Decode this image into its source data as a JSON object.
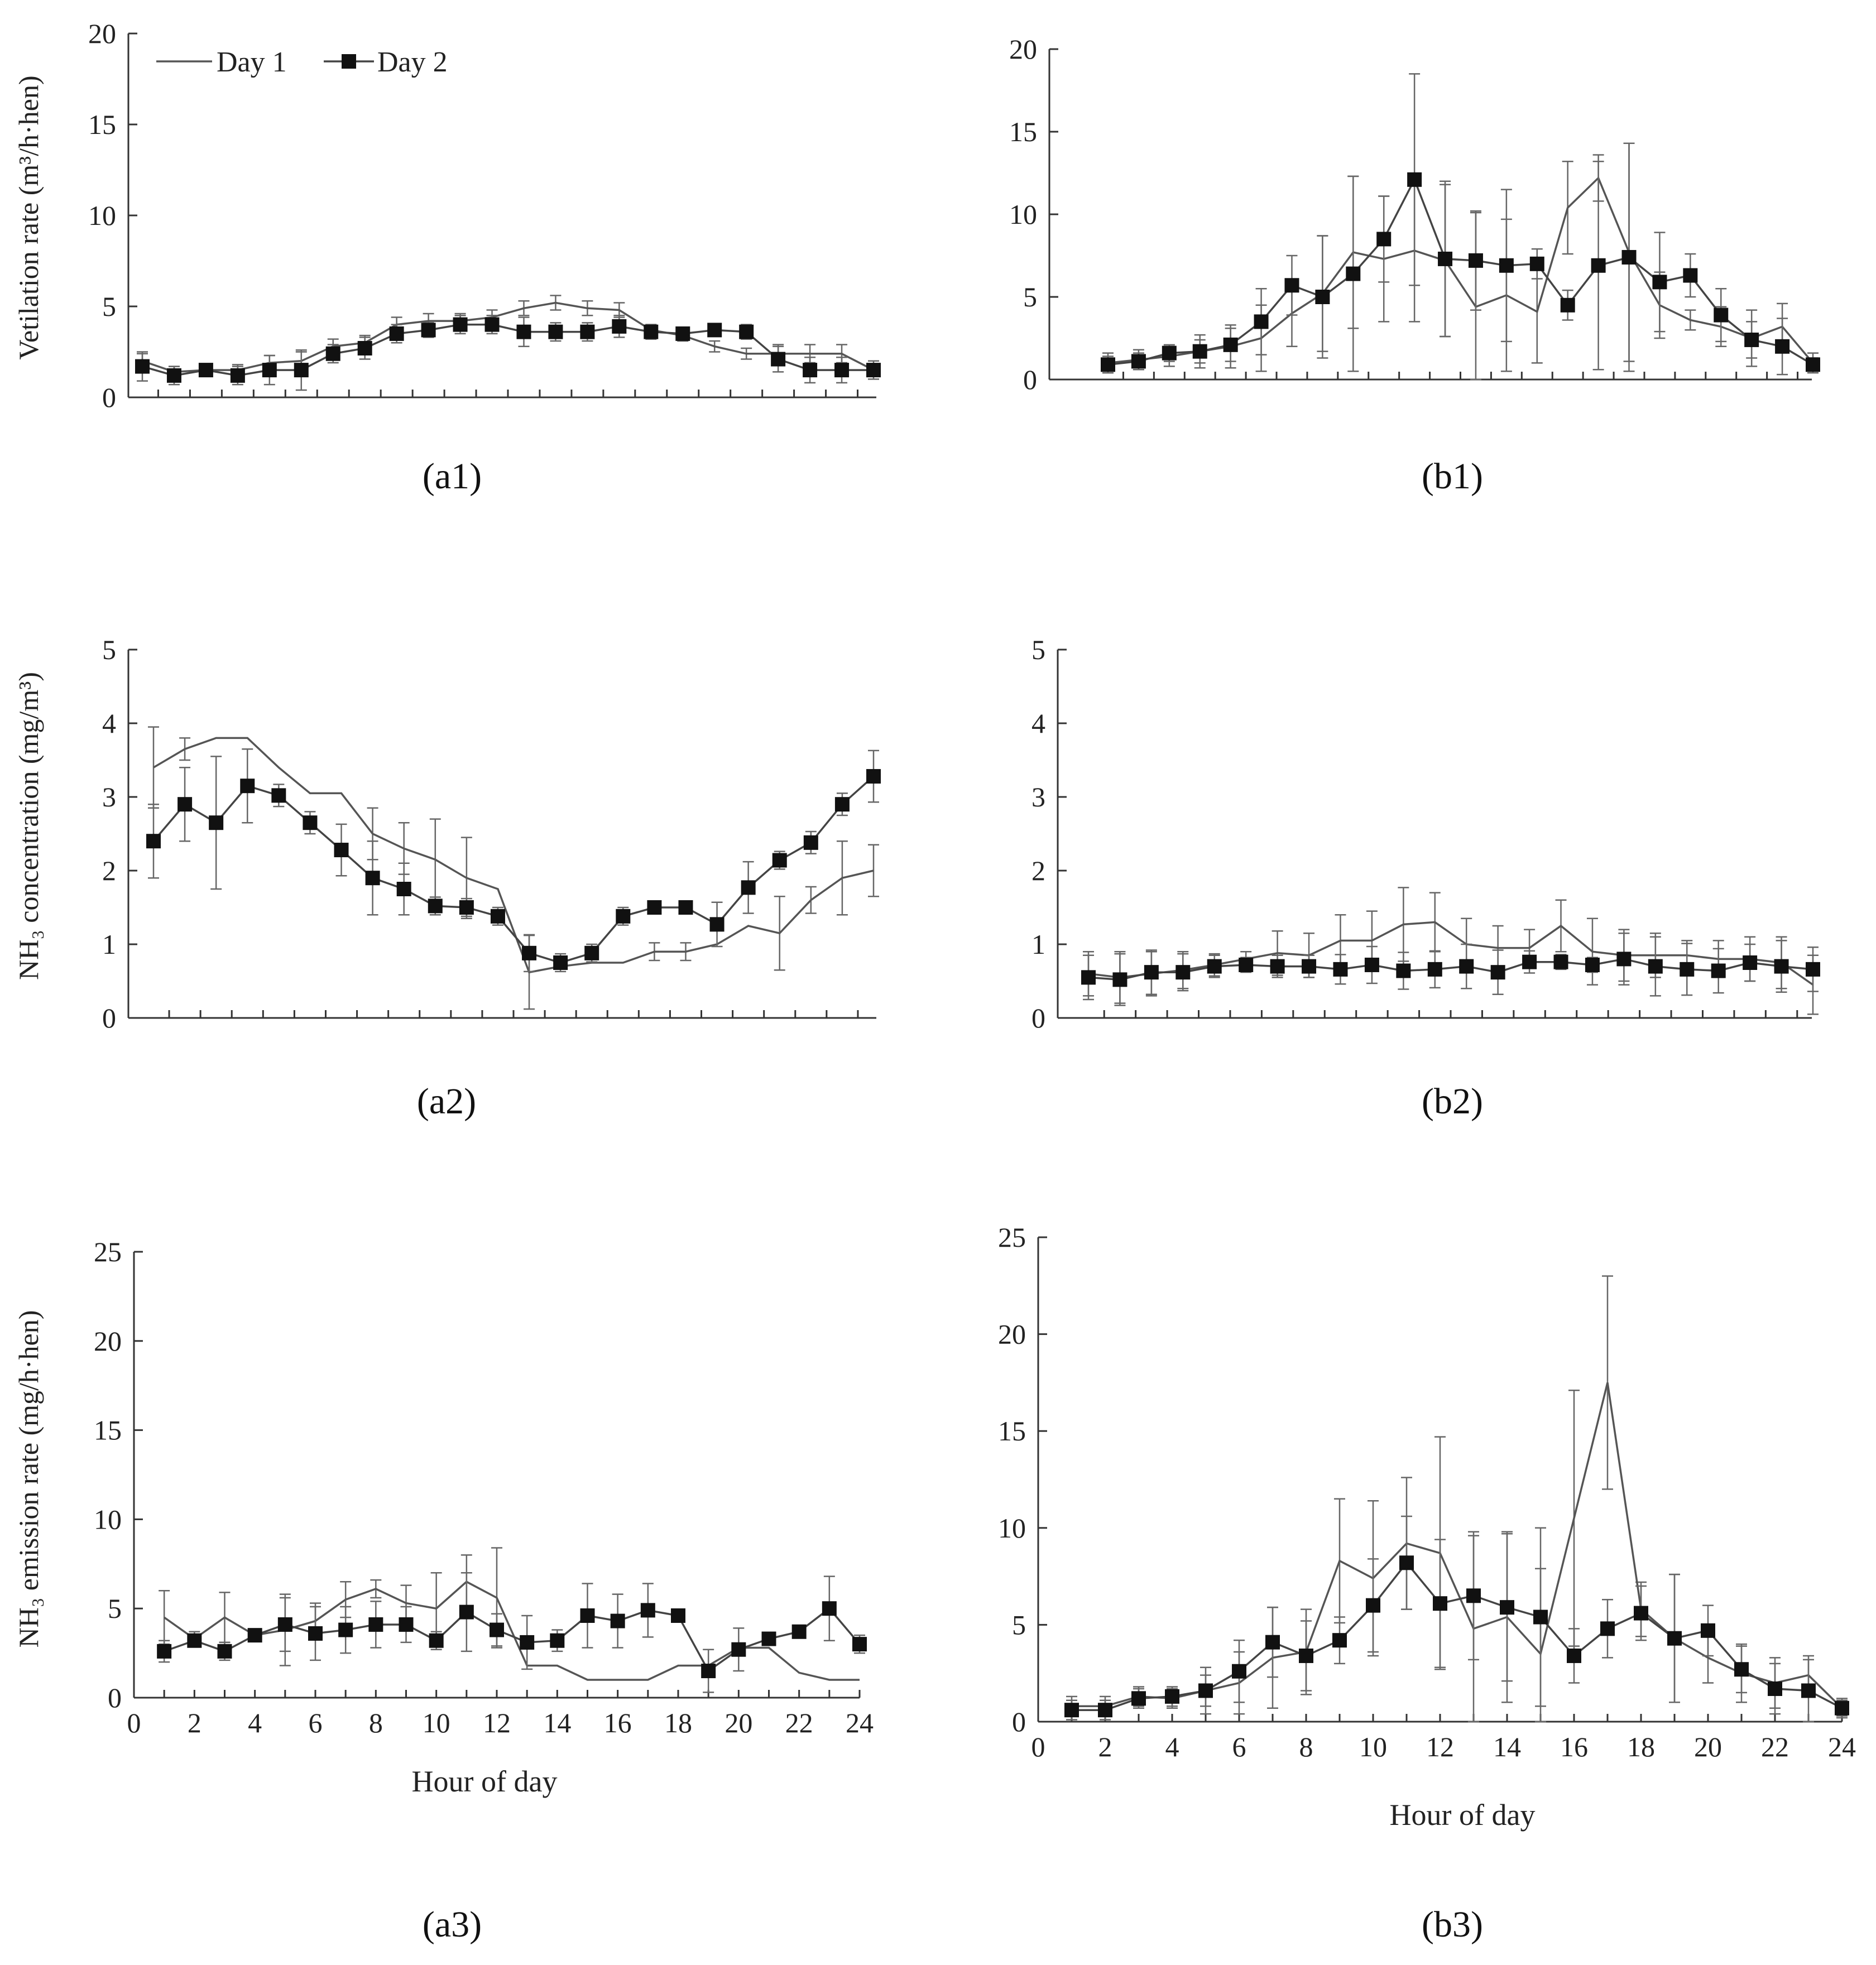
{
  "legend": {
    "day1": "Day 1",
    "day2": "Day 2"
  },
  "axis_titles": {
    "ventilation": "Vetilation rate (m³/h·hen)",
    "concentration": "NH₃ concentration (mg/m³)",
    "emission": "NH₃ emission rate (mg/h·hen)",
    "hour": "Hour of day"
  },
  "captions": {
    "a1": "(a1)",
    "b1": "(b1)",
    "a2": "(a2)",
    "b2": "(b2)",
    "a3": "(a3)",
    "b3": "(b3)"
  },
  "chart_data": [
    {
      "id": "a1",
      "type": "line",
      "title": "(a1)",
      "ylabel": "Vetilation rate (m³/h·hen)",
      "xlabel": "",
      "xlim": [
        1,
        24
      ],
      "ylim": [
        0,
        20
      ],
      "yticks": [
        0,
        5,
        10,
        15,
        20
      ],
      "xticks": [],
      "legend": [
        "Day 1",
        "Day 2"
      ],
      "series": [
        {
          "name": "Day 1",
          "x": [
            1,
            2,
            3,
            4,
            5,
            6,
            7,
            8,
            9,
            10,
            11,
            12,
            13,
            14,
            15,
            16,
            17,
            18,
            19,
            20,
            21,
            22,
            23,
            24
          ],
          "values": [
            2.0,
            1.4,
            1.5,
            1.5,
            1.9,
            2.0,
            2.8,
            3.0,
            4.0,
            4.2,
            4.2,
            4.4,
            4.9,
            5.2,
            4.9,
            4.8,
            3.7,
            3.4,
            2.8,
            2.4,
            2.4,
            2.4,
            2.4,
            1.5
          ],
          "err": [
            0.4,
            0.3,
            0.3,
            0.3,
            0.4,
            0.5,
            0.4,
            0.4,
            0.4,
            0.4,
            0.4,
            0.4,
            0.4,
            0.4,
            0.4,
            0.4,
            0.3,
            0.3,
            0.3,
            0.3,
            0.5,
            0.5,
            0.5,
            0.3
          ]
        },
        {
          "name": "Day 2",
          "x": [
            1,
            2,
            3,
            4,
            5,
            6,
            7,
            8,
            9,
            10,
            11,
            12,
            13,
            14,
            15,
            16,
            17,
            18,
            19,
            20,
            21,
            22,
            23,
            24
          ],
          "values": [
            1.7,
            1.2,
            1.5,
            1.2,
            1.5,
            1.5,
            2.4,
            2.7,
            3.5,
            3.7,
            4.0,
            4.0,
            3.6,
            3.6,
            3.6,
            3.9,
            3.6,
            3.5,
            3.7,
            3.6,
            2.1,
            1.5,
            1.5,
            1.5
          ],
          "err": [
            0.8,
            0.5,
            0.3,
            0.5,
            0.8,
            1.1,
            0.5,
            0.6,
            0.5,
            0.4,
            0.5,
            0.5,
            0.8,
            0.5,
            0.5,
            0.6,
            0.4,
            0.3,
            0.3,
            0.4,
            0.7,
            0.7,
            0.7,
            0.5
          ]
        }
      ]
    },
    {
      "id": "b1",
      "type": "line",
      "title": "(b1)",
      "ylabel": "",
      "xlabel": "",
      "xlim": [
        1,
        24
      ],
      "ylim": [
        0,
        20
      ],
      "yticks": [
        0,
        5,
        10,
        15,
        20
      ],
      "xticks": [],
      "series": [
        {
          "name": "Day 1",
          "x": [
            1,
            2,
            3,
            4,
            5,
            6,
            7,
            8,
            9,
            10,
            11,
            12,
            13,
            14,
            15,
            16,
            17,
            18,
            19,
            20,
            21,
            22,
            23,
            24
          ],
          "values": [
            1.0,
            1.2,
            1.4,
            1.7,
            2.0,
            2.5,
            4.0,
            5.2,
            7.7,
            7.3,
            7.8,
            7.2,
            4.4,
            5.1,
            4.1,
            10.4,
            12.2,
            7.7,
            4.5,
            3.6,
            3.2,
            2.5,
            3.2,
            1.0
          ],
          "err": [
            0.6,
            0.6,
            0.6,
            1.0,
            1.3,
            2.0,
            2.0,
            3.5,
            4.6,
            3.8,
            4.3,
            4.6,
            5.7,
            4.6,
            3.1,
            2.8,
            1.4,
            6.6,
            2.0,
            0.6,
            1.2,
            1.7,
            1.4,
            0.6
          ]
        },
        {
          "name": "Day 2",
          "x": [
            1,
            2,
            3,
            4,
            5,
            6,
            7,
            8,
            9,
            10,
            11,
            12,
            13,
            14,
            15,
            16,
            17,
            18,
            19,
            20,
            21,
            22,
            23,
            24
          ],
          "values": [
            0.9,
            1.1,
            1.6,
            1.7,
            2.1,
            3.5,
            5.7,
            5.0,
            6.4,
            8.5,
            12.1,
            7.3,
            7.2,
            6.9,
            7.0,
            4.5,
            6.9,
            7.4,
            5.9,
            6.3,
            3.9,
            2.4,
            2.0,
            0.9
          ],
          "err": [
            0.5,
            0.5,
            0.5,
            0.7,
            1.0,
            2.0,
            1.8,
            3.7,
            5.9,
            2.6,
            6.4,
            4.7,
            3.0,
            4.6,
            0.9,
            0.9,
            6.3,
            6.9,
            3.0,
            1.3,
            1.6,
            1.1,
            1.7,
            0.4
          ]
        }
      ]
    },
    {
      "id": "a2",
      "type": "line",
      "title": "(a2)",
      "ylabel": "NH₃ concentration (mg/m³)",
      "xlabel": "",
      "xlim": [
        1,
        24
      ],
      "ylim": [
        0,
        5
      ],
      "yticks": [
        0,
        1,
        2,
        3,
        4,
        5
      ],
      "xticks": [],
      "series": [
        {
          "name": "Day 1",
          "x": [
            1,
            2,
            3,
            4,
            5,
            6,
            7,
            8,
            9,
            10,
            11,
            12,
            13,
            14,
            15,
            16,
            17,
            18,
            19,
            20,
            21,
            22,
            23,
            24
          ],
          "values": [
            3.4,
            3.65,
            3.8,
            3.8,
            3.4,
            3.05,
            3.05,
            2.5,
            2.3,
            2.15,
            1.9,
            1.75,
            0.62,
            0.7,
            0.75,
            0.75,
            0.9,
            0.9,
            1.0,
            1.25,
            1.15,
            1.6,
            1.9,
            2.0
          ],
          "err": [
            0.55,
            0.15,
            0.0,
            0.0,
            0.0,
            0.0,
            0.0,
            0.35,
            0.35,
            0.55,
            0.55,
            0.0,
            0.5,
            0.0,
            0.0,
            0.0,
            0.12,
            0.12,
            0.0,
            0.0,
            0.5,
            0.18,
            0.5,
            0.35
          ]
        },
        {
          "name": "Day 2",
          "x": [
            1,
            2,
            3,
            4,
            5,
            6,
            7,
            8,
            9,
            10,
            11,
            12,
            13,
            14,
            15,
            16,
            17,
            18,
            19,
            20,
            21,
            22,
            23,
            24
          ],
          "values": [
            2.4,
            2.9,
            2.65,
            3.15,
            3.02,
            2.65,
            2.28,
            1.9,
            1.75,
            1.52,
            1.5,
            1.38,
            0.88,
            0.75,
            0.88,
            1.38,
            1.5,
            1.5,
            1.27,
            1.77,
            2.14,
            2.38,
            2.9,
            3.28
          ],
          "err": [
            0.5,
            0.5,
            0.9,
            0.5,
            0.15,
            0.15,
            0.35,
            0.5,
            0.35,
            0.12,
            0.12,
            0.12,
            0.25,
            0.12,
            0.12,
            0.12,
            0.0,
            0.0,
            0.3,
            0.35,
            0.12,
            0.15,
            0.15,
            0.35
          ]
        }
      ]
    },
    {
      "id": "b2",
      "type": "line",
      "title": "(b2)",
      "ylabel": "",
      "xlabel": "",
      "xlim": [
        1,
        24
      ],
      "ylim": [
        0,
        5
      ],
      "yticks": [
        0,
        1,
        2,
        3,
        4,
        5
      ],
      "xticks": [],
      "series": [
        {
          "name": "Day 1",
          "x": [
            1,
            2,
            3,
            4,
            5,
            6,
            7,
            8,
            9,
            10,
            11,
            12,
            13,
            14,
            15,
            16,
            17,
            18,
            19,
            20,
            21,
            22,
            23,
            24
          ],
          "values": [
            0.6,
            0.55,
            0.6,
            0.65,
            0.72,
            0.8,
            0.88,
            0.85,
            1.05,
            1.05,
            1.27,
            1.3,
            1.0,
            0.95,
            0.95,
            1.25,
            0.9,
            0.85,
            0.85,
            0.85,
            0.8,
            0.8,
            0.75,
            0.45
          ],
          "err": [
            0.3,
            0.35,
            0.3,
            0.25,
            0.15,
            0.1,
            0.3,
            0.3,
            0.35,
            0.4,
            0.5,
            0.4,
            0.35,
            0.3,
            0.25,
            0.35,
            0.45,
            0.35,
            0.3,
            0.2,
            0.25,
            0.3,
            0.35,
            0.4
          ]
        },
        {
          "name": "Day 2",
          "x": [
            1,
            2,
            3,
            4,
            5,
            6,
            7,
            8,
            9,
            10,
            11,
            12,
            13,
            14,
            15,
            16,
            17,
            18,
            19,
            20,
            21,
            22,
            23,
            24
          ],
          "values": [
            0.55,
            0.52,
            0.62,
            0.62,
            0.7,
            0.72,
            0.7,
            0.7,
            0.66,
            0.72,
            0.64,
            0.66,
            0.7,
            0.62,
            0.76,
            0.76,
            0.72,
            0.8,
            0.7,
            0.66,
            0.64,
            0.75,
            0.7,
            0.66
          ],
          "err": [
            0.3,
            0.35,
            0.3,
            0.25,
            0.15,
            0.1,
            0.15,
            0.15,
            0.2,
            0.25,
            0.25,
            0.25,
            0.3,
            0.3,
            0.15,
            0.1,
            0.1,
            0.35,
            0.4,
            0.35,
            0.3,
            0.25,
            0.35,
            0.3
          ]
        }
      ]
    },
    {
      "id": "a3",
      "type": "line",
      "title": "(a3)",
      "ylabel": "NH₃ emission rate (mg/h·hen)",
      "xlabel": "Hour of day",
      "xlim": [
        0,
        24
      ],
      "ylim": [
        0,
        25
      ],
      "yticks": [
        0,
        5,
        10,
        15,
        20,
        25
      ],
      "xticks": [
        0,
        2,
        4,
        6,
        8,
        10,
        12,
        14,
        16,
        18,
        20,
        22,
        24
      ],
      "series": [
        {
          "name": "Day 1",
          "x": [
            1,
            2,
            3,
            4,
            5,
            6,
            7,
            8,
            9,
            10,
            11,
            12,
            13,
            14,
            15,
            16,
            17,
            18,
            19,
            20,
            21,
            22,
            23,
            24
          ],
          "values": [
            4.5,
            3.3,
            4.5,
            3.5,
            3.8,
            4.3,
            5.5,
            6.1,
            5.3,
            5.0,
            6.5,
            5.6,
            1.8,
            1.8,
            1.0,
            1.0,
            1.0,
            1.8,
            1.8,
            2.8,
            2.8,
            1.4,
            1.0,
            1.0
          ],
          "err": [
            1.5,
            0.4,
            1.4,
            0.3,
            2.0,
            1.0,
            1.0,
            0.5,
            1.0,
            2.0,
            1.5,
            2.8,
            0.0,
            0.0,
            0.0,
            0.0,
            0.0,
            0.0,
            0.0,
            0.0,
            0.0,
            0.0,
            0.0,
            0.0
          ]
        },
        {
          "name": "Day 2",
          "x": [
            1,
            2,
            3,
            4,
            5,
            6,
            7,
            8,
            9,
            10,
            11,
            12,
            13,
            14,
            15,
            16,
            17,
            18,
            19,
            20,
            21,
            22,
            23,
            24
          ],
          "values": [
            2.6,
            3.2,
            2.6,
            3.5,
            4.1,
            3.6,
            3.8,
            4.1,
            4.1,
            3.2,
            4.8,
            3.8,
            3.1,
            3.2,
            4.6,
            4.3,
            4.9,
            4.6,
            1.5,
            2.7,
            3.3,
            3.7,
            5.0,
            3.0
          ],
          "err": [
            0.6,
            0.3,
            0.5,
            0.2,
            1.5,
            1.5,
            1.3,
            1.3,
            1.0,
            0.5,
            2.2,
            0.9,
            1.5,
            0.6,
            1.8,
            1.5,
            1.5,
            0.3,
            1.2,
            1.2,
            0.3,
            0.2,
            1.8,
            0.5
          ]
        }
      ]
    },
    {
      "id": "b3",
      "type": "line",
      "title": "(b3)",
      "ylabel": "",
      "xlabel": "Hour of day",
      "xlim": [
        0,
        24
      ],
      "ylim": [
        0,
        25
      ],
      "yticks": [
        0,
        5,
        10,
        15,
        20,
        25
      ],
      "xticks": [
        0,
        2,
        4,
        6,
        8,
        10,
        12,
        14,
        16,
        18,
        20,
        22,
        24
      ],
      "series": [
        {
          "name": "Day 1",
          "x": [
            1,
            2,
            3,
            4,
            5,
            6,
            7,
            8,
            9,
            10,
            11,
            12,
            13,
            14,
            15,
            16,
            17,
            18,
            19,
            20,
            21,
            22,
            23,
            24
          ],
          "values": [
            0.8,
            0.8,
            1.3,
            1.2,
            1.6,
            2.0,
            3.3,
            3.6,
            8.3,
            7.4,
            9.2,
            8.7,
            4.8,
            5.4,
            3.5,
            10.5,
            17.5,
            5.8,
            4.3,
            3.3,
            2.5,
            2.0,
            2.4,
            0.7
          ],
          "err": [
            0.5,
            0.5,
            0.5,
            0.5,
            1.2,
            1.6,
            2.6,
            2.2,
            3.2,
            4.0,
            3.4,
            6.0,
            4.8,
            4.4,
            4.4,
            6.6,
            5.5,
            1.4,
            3.3,
            1.3,
            1.5,
            1.3,
            1.0,
            0.5
          ]
        },
        {
          "name": "Day 2",
          "x": [
            1,
            2,
            3,
            4,
            5,
            6,
            7,
            8,
            9,
            10,
            11,
            12,
            13,
            14,
            15,
            16,
            17,
            18,
            19,
            20,
            21,
            22,
            23,
            24
          ],
          "values": [
            0.6,
            0.6,
            1.2,
            1.3,
            1.6,
            2.6,
            4.1,
            3.4,
            4.2,
            6.0,
            8.2,
            6.1,
            6.5,
            5.9,
            5.4,
            3.4,
            4.8,
            5.6,
            4.3,
            4.7,
            2.7,
            1.7,
            1.6,
            0.7
          ],
          "err": [
            0.5,
            0.5,
            0.5,
            0.5,
            0.8,
            1.6,
            1.8,
            1.8,
            1.2,
            2.4,
            2.4,
            3.3,
            3.3,
            3.8,
            4.6,
            1.4,
            1.5,
            1.4,
            3.3,
            1.3,
            1.2,
            1.3,
            1.6,
            0.4
          ]
        }
      ]
    }
  ]
}
